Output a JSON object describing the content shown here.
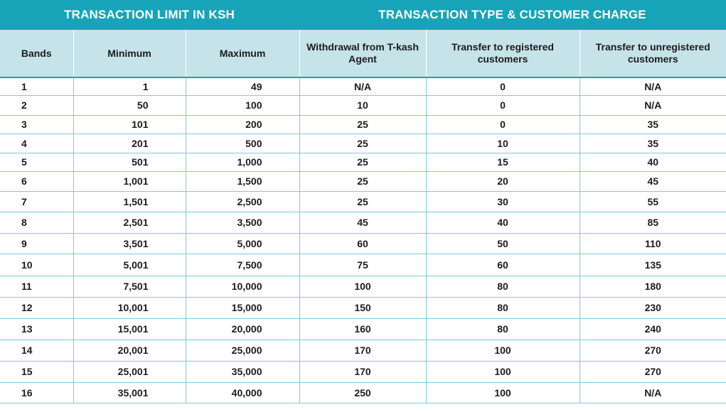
{
  "headers": {
    "group_left": "TRANSACTION LIMIT IN KSH",
    "group_right": "TRANSACTION TYPE & CUSTOMER CHARGE",
    "columns": [
      "Bands",
      "Minimum",
      "Maximum",
      "Withdrawal from T-kash Agent",
      "Transfer to registered customers",
      "Transfer to unregistered customers"
    ]
  },
  "colors": {
    "accent": "#18a4b8",
    "header_bg": "#c5e3e9",
    "grid": "#7ccbd8"
  },
  "rows": [
    [
      "1",
      "1",
      "49",
      "N/A",
      "0",
      "N/A"
    ],
    [
      "2",
      "50",
      "100",
      "10",
      "0",
      "N/A"
    ],
    [
      "3",
      "101",
      "200",
      "25",
      "0",
      "35"
    ],
    [
      "4",
      "201",
      "500",
      "25",
      "10",
      "35"
    ],
    [
      "5",
      "501",
      "1,000",
      "25",
      "15",
      "40"
    ],
    [
      "6",
      "1,001",
      "1,500",
      "25",
      "20",
      "45"
    ],
    [
      "7",
      "1,501",
      "2,500",
      "25",
      "30",
      "55"
    ],
    [
      "8",
      "2,501",
      "3,500",
      "45",
      "40",
      "85"
    ],
    [
      "9",
      "3,501",
      "5,000",
      "60",
      "50",
      "110"
    ],
    [
      "10",
      "5,001",
      "7,500",
      "75",
      "60",
      "135"
    ],
    [
      "11",
      "7,501",
      "10,000",
      "100",
      "80",
      "180"
    ],
    [
      "12",
      "10,001",
      "15,000",
      "150",
      "80",
      "230"
    ],
    [
      "13",
      "15,001",
      "20,000",
      "160",
      "80",
      "240"
    ],
    [
      "14",
      "20,001",
      "25,000",
      "170",
      "100",
      "270"
    ],
    [
      "15",
      "25,001",
      "35,000",
      "170",
      "100",
      "270"
    ],
    [
      "16",
      "35,001",
      "40,000",
      "250",
      "100",
      "N/A"
    ]
  ]
}
